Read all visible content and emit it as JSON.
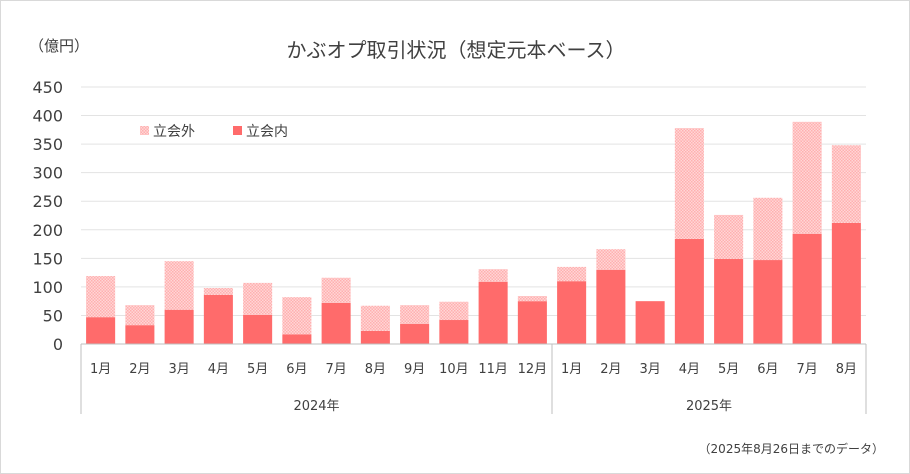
{
  "chart_data": {
    "type": "bar",
    "stacked": true,
    "title": "かぶオプ取引状況（想定元本ベース）",
    "ylabel": "（億円）",
    "footnote": "（2025年8月26日までのデータ）",
    "ylim": [
      0,
      450
    ],
    "yticks": [
      0,
      50,
      100,
      150,
      200,
      250,
      300,
      350,
      400,
      450
    ],
    "grid": true,
    "legend_position": "top-left",
    "categories": [
      "1月",
      "2月",
      "3月",
      "4月",
      "5月",
      "6月",
      "7月",
      "8月",
      "9月",
      "10月",
      "11月",
      "12月",
      "1月",
      "2月",
      "3月",
      "4月",
      "5月",
      "6月",
      "7月",
      "8月"
    ],
    "groups": [
      {
        "label": "2024年",
        "count": 12
      },
      {
        "label": "2025年",
        "count": 8
      }
    ],
    "series": [
      {
        "name": "立会内",
        "color": "#FF6B6B",
        "values": [
          47,
          33,
          60,
          86,
          51,
          17,
          72,
          23,
          35,
          42,
          109,
          75,
          110,
          130,
          75,
          184,
          149,
          147,
          193,
          212
        ]
      },
      {
        "name": "立会外",
        "color": "#FFC4C4",
        "values": [
          72,
          35,
          85,
          12,
          56,
          65,
          44,
          44,
          33,
          32,
          22,
          9,
          25,
          36,
          0,
          194,
          77,
          109,
          196,
          136
        ]
      }
    ]
  }
}
